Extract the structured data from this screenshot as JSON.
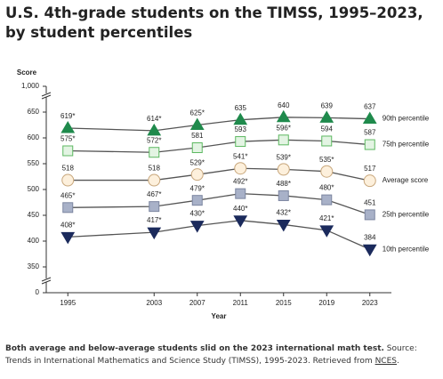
{
  "chart_data": {
    "type": "line",
    "title": "U.S. 4th-grade students on the TIMSS, 1995–2023, by student percentiles",
    "y_label": "Score",
    "x_label": "Year",
    "x": [
      1995,
      2003,
      2007,
      2011,
      2015,
      2019,
      2023
    ],
    "xlim": [
      1993,
      2025
    ],
    "xticks": [
      1995,
      2003,
      2007,
      2011,
      2015,
      2019,
      2023
    ],
    "ylim": [
      300,
      700
    ],
    "yticks": [
      0,
      350,
      400,
      450,
      500,
      550,
      600,
      650,
      {
        "value": 1000,
        "label": "1,000"
      }
    ],
    "axis_break": true,
    "grid": false,
    "line_color": "#555555",
    "series": [
      {
        "name": "90th percentile",
        "marker": "triangle-up",
        "color": "#1f8a4c",
        "stroke": "#1f8a4c",
        "values": [
          619,
          614,
          625,
          635,
          640,
          639,
          637
        ],
        "value_labels": [
          "619*",
          "614*",
          "625*",
          "635",
          "640",
          "639",
          "637"
        ]
      },
      {
        "name": "75th percentile",
        "marker": "square",
        "color": "#e3f4e3",
        "stroke": "#5cb860",
        "values": [
          575,
          572,
          581,
          593,
          596,
          594,
          587
        ],
        "value_labels": [
          "575*",
          "572*",
          "581",
          "593",
          "596*",
          "594",
          "587"
        ]
      },
      {
        "name": "Average score",
        "marker": "circle",
        "color": "#fdf0dc",
        "stroke": "#c8a77c",
        "values": [
          518,
          518,
          529,
          541,
          539,
          535,
          517
        ],
        "value_labels": [
          "518",
          "518",
          "529*",
          "541*",
          "539*",
          "535*",
          "517"
        ]
      },
      {
        "name": "25th percentile",
        "marker": "square",
        "color": "#a8b1c8",
        "stroke": "#7c86a0",
        "values": [
          465,
          467,
          479,
          492,
          488,
          480,
          451
        ],
        "value_labels": [
          "465*",
          "467*",
          "479*",
          "492*",
          "488*",
          "480*",
          "451"
        ]
      },
      {
        "name": "10th percentile",
        "marker": "triangle-down",
        "color": "#1b2a5c",
        "stroke": "#1b2a5c",
        "values": [
          408,
          417,
          430,
          440,
          432,
          421,
          384
        ],
        "value_labels": [
          "408*",
          "417*",
          "430*",
          "440*",
          "432*",
          "421*",
          "384"
        ]
      }
    ]
  },
  "caption": {
    "lead": "Both average and below-average students slid on the 2023 international math test.",
    "source": "Source: Trends in International Mathematics and Science Study (TIMSS), 1995-2023. Retrieved from",
    "link": "NCES",
    "end": "."
  }
}
